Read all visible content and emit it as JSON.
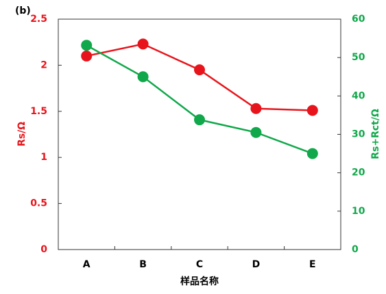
{
  "chart_data": {
    "type": "line",
    "panel_label": "(b)",
    "x_label": "样品名称",
    "y_label": "Rs/Ω",
    "y2_label": "Rs+Rct/Ω",
    "categories": [
      "A",
      "B",
      "C",
      "D",
      "E"
    ],
    "series": [
      {
        "name": "Rs/Ω",
        "color": "#e8141b",
        "axis": "y",
        "values": [
          2.1,
          2.23,
          1.95,
          1.53,
          1.51
        ]
      },
      {
        "name": "Rs+Rct/Ω",
        "color": "#10a84a",
        "axis": "y2",
        "values": [
          53.2,
          45,
          33.8,
          30.5,
          25
        ]
      }
    ],
    "ylim": [
      0,
      2.5
    ],
    "yticks": [
      0,
      0.5,
      1,
      1.5,
      2,
      2.5
    ],
    "y2lim": [
      0,
      60
    ],
    "y2ticks": [
      0,
      10,
      20,
      30,
      40,
      50,
      60
    ],
    "grid": false
  }
}
